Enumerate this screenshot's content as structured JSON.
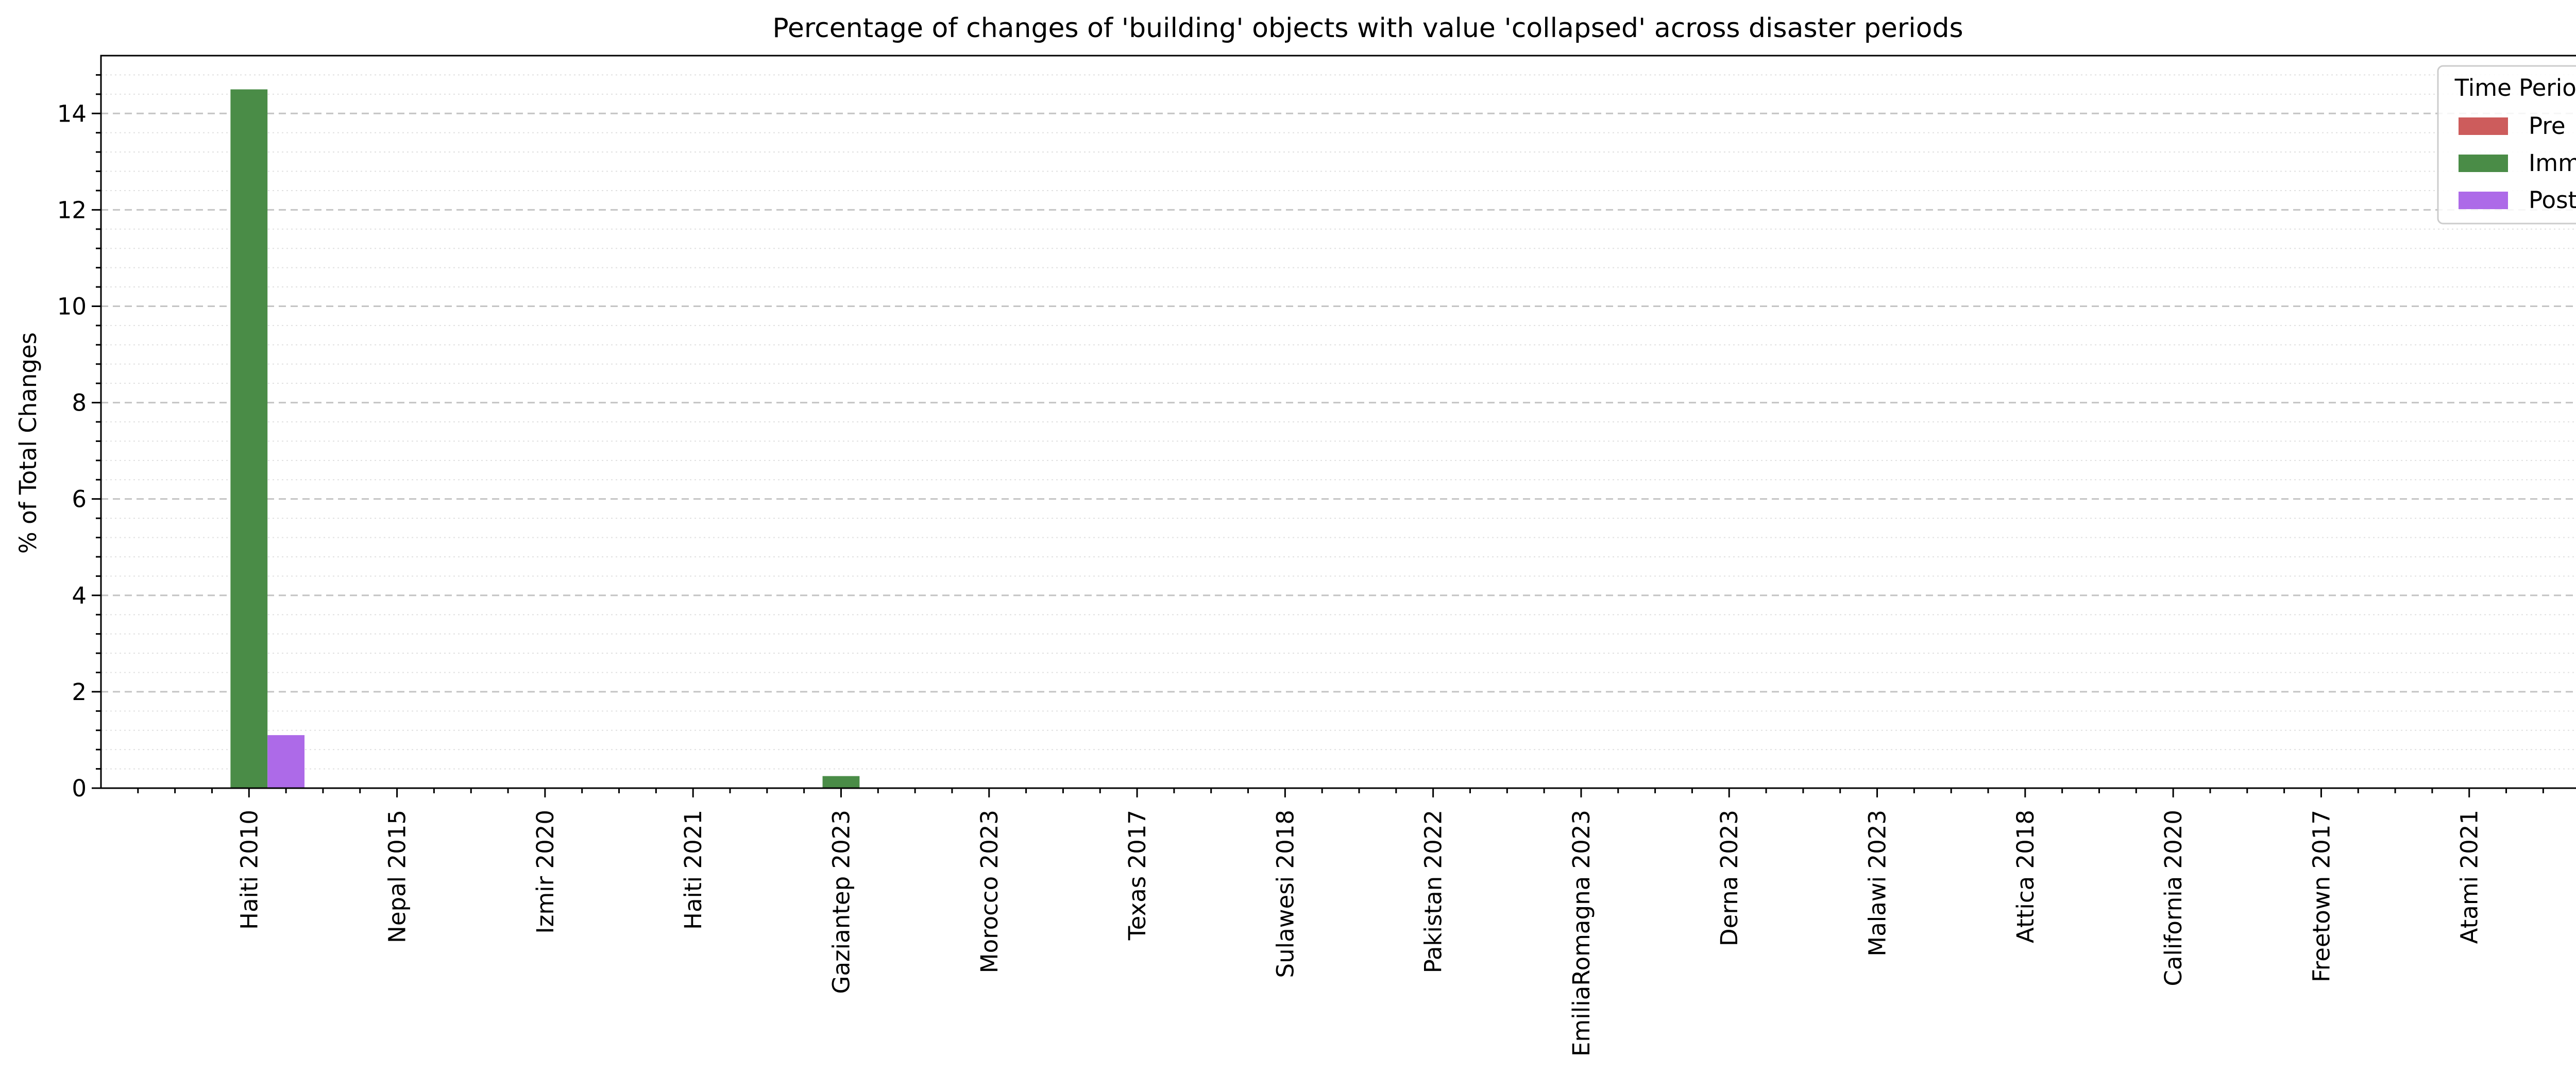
{
  "chart_data": {
    "type": "bar",
    "title": "Percentage of changes of 'building' objects with value 'collapsed' across disaster periods",
    "xlabel": "",
    "ylabel": "% of Total Changes",
    "ylim": [
      0,
      15.2
    ],
    "yticks": [
      0,
      2,
      4,
      6,
      8,
      10,
      12,
      14
    ],
    "grid": "horizontal dashed major, dotted minor",
    "legend": {
      "title": "Time Period",
      "placement": "top-right"
    },
    "categories": [
      "Haiti 2010",
      "Nepal 2015",
      "Izmir 2020",
      "Haiti 2021",
      "Gaziantep 2023",
      "Morocco 2023",
      "Texas 2017",
      "Sulawesi 2018",
      "Pakistan 2022",
      "EmiliaRomagna 2023",
      "Derna 2023",
      "Malawi 2023",
      "Attica 2018",
      "California 2020",
      "Freetown 2017",
      "Atami 2021"
    ],
    "series": [
      {
        "name": "Pre",
        "color": "#cd5c5c",
        "values": [
          0,
          0,
          0,
          0,
          0,
          0,
          0,
          0,
          0,
          0,
          0,
          0,
          0,
          0,
          0,
          0
        ]
      },
      {
        "name": "Imm",
        "color": "#4a8c47",
        "values": [
          14.5,
          0,
          0,
          0,
          0.25,
          0,
          0,
          0,
          0,
          0,
          0,
          0,
          0,
          0,
          0,
          0
        ]
      },
      {
        "name": "Post",
        "color": "#ad6ae8",
        "values": [
          1.1,
          0,
          0,
          0,
          0,
          0,
          0,
          0,
          0,
          0,
          0,
          0,
          0,
          0,
          0,
          0
        ]
      }
    ]
  }
}
